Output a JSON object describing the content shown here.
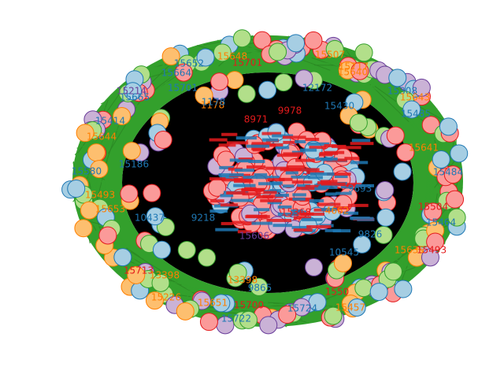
{
  "colors": {
    "background": "#ffffff",
    "edge_dark": "#000000",
    "edge_green": "#33a02c",
    "node_fill_lightblue": "#a6cee3",
    "node_fill_orange": "#fdbf6f",
    "node_fill_pink": "#fb9a99",
    "node_fill_lightgreen": "#b2df8a",
    "node_fill_purple": "#cab2d6",
    "label_blue": "#1f78b4",
    "label_orange": "#ff7f00",
    "label_red": "#e31a1c",
    "label_green": "#33a02c",
    "label_purple": "#6a3d9a"
  },
  "legend": [],
  "nodes": [
    {
      "label": "15648",
      "color": "orange"
    },
    {
      "label": "15507",
      "color": "orange"
    },
    {
      "label": "15652",
      "color": "blue"
    },
    {
      "label": "15701",
      "color": "red"
    },
    {
      "label": "15717",
      "color": "orange"
    },
    {
      "label": "15664",
      "color": "blue"
    },
    {
      "label": "15640",
      "color": "orange"
    },
    {
      "label": "12172",
      "color": "blue"
    },
    {
      "label": "15308",
      "color": "blue"
    },
    {
      "label": "15214",
      "color": "purple"
    },
    {
      "label": "15665",
      "color": "blue"
    },
    {
      "label": "1178",
      "color": "orange"
    },
    {
      "label": "15701",
      "color": "blue"
    },
    {
      "label": "15643",
      "color": "orange"
    },
    {
      "label": "15485",
      "color": "blue"
    },
    {
      "label": "15414",
      "color": "blue"
    },
    {
      "label": "9978",
      "color": "red"
    },
    {
      "label": "15430",
      "color": "blue"
    },
    {
      "label": "8971",
      "color": "red"
    },
    {
      "label": "15644",
      "color": "orange"
    },
    {
      "label": "15641",
      "color": "orange"
    },
    {
      "label": "15186",
      "color": "blue"
    },
    {
      "label": "15580",
      "color": "blue"
    },
    {
      "label": "15493",
      "color": "orange"
    },
    {
      "label": "15504",
      "color": "red"
    },
    {
      "label": "15484",
      "color": "blue"
    },
    {
      "label": "15653",
      "color": "orange"
    },
    {
      "label": "10437",
      "color": "blue"
    },
    {
      "label": "9218",
      "color": "blue"
    },
    {
      "label": "15464",
      "color": "blue"
    },
    {
      "label": "15606",
      "color": "purple"
    },
    {
      "label": "15368",
      "color": "red"
    },
    {
      "label": "9826",
      "color": "blue"
    },
    {
      "label": "15635",
      "color": "orange"
    },
    {
      "label": "15493",
      "color": "red"
    },
    {
      "label": "15713",
      "color": "red"
    },
    {
      "label": "13398",
      "color": "orange"
    },
    {
      "label": "15226",
      "color": "orange"
    },
    {
      "label": "15651",
      "color": "orange"
    },
    {
      "label": "15700",
      "color": "red"
    },
    {
      "label": "15722",
      "color": "blue"
    },
    {
      "label": "15457",
      "color": "orange"
    },
    {
      "label": "15724",
      "color": "blue"
    },
    {
      "label": "1550",
      "color": "red"
    },
    {
      "label": "10545",
      "color": "blue"
    },
    {
      "label": "9693",
      "color": "blue"
    },
    {
      "label": "1178",
      "color": "blue"
    },
    {
      "label": "4662",
      "color": "orange"
    },
    {
      "label": "9865",
      "color": "blue"
    },
    {
      "label": "13398",
      "color": "orange"
    }
  ]
}
